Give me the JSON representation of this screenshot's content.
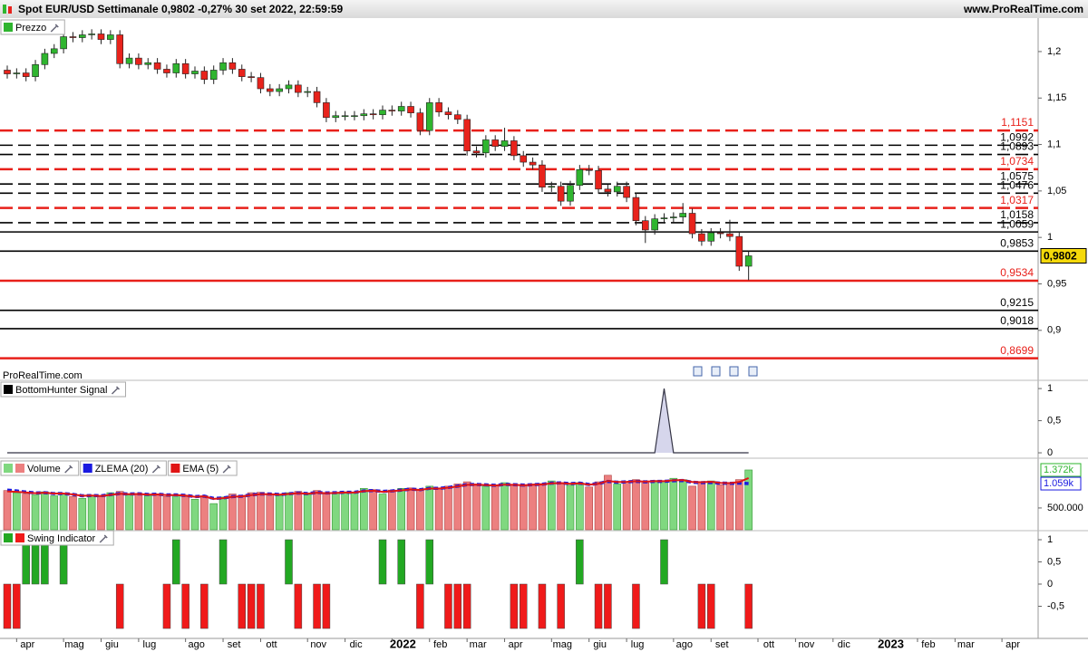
{
  "header": {
    "title": "Spot EUR/USD Settimanale 0,9802 -0,27% 30 set 2022, 22:59:59",
    "site": "www.ProRealTime.com"
  },
  "chart_data": [
    {
      "type": "candlestick",
      "title": "Prezzo",
      "watermark": "ProRealTime.com",
      "up_color": "#2fb52f",
      "down_color": "#e8231c",
      "categories": [
        null,
        "apr",
        null,
        null,
        null,
        null,
        "mag",
        null,
        null,
        null,
        "giu",
        null,
        null,
        null,
        "lug",
        null,
        null,
        null,
        null,
        "ago",
        null,
        null,
        null,
        "set",
        null,
        null,
        null,
        "ott",
        null,
        null,
        null,
        null,
        "nov",
        null,
        null,
        null,
        "dic",
        null,
        null,
        null,
        null,
        "2022",
        null,
        null,
        null,
        "feb",
        null,
        null,
        null,
        "mar",
        null,
        null,
        null,
        "apr",
        null,
        null,
        null,
        null,
        "mag",
        null,
        null,
        null,
        "giu",
        null,
        null,
        null,
        "lug",
        null,
        null,
        null,
        null,
        "ago",
        null,
        null,
        null,
        "set",
        null,
        null,
        null,
        null,
        "ott",
        null,
        null,
        null,
        "nov",
        null,
        null,
        null,
        "dic",
        null,
        null,
        null,
        null,
        "2023",
        null,
        null,
        null,
        "feb",
        null,
        null,
        null,
        "mar",
        null,
        null,
        null,
        null,
        "apr",
        null,
        null
      ],
      "open": [
        1.18,
        1.176,
        1.177,
        1.173,
        1.186,
        1.198,
        1.203,
        1.216,
        1.215,
        1.218,
        1.219,
        1.213,
        1.218,
        1.187,
        1.193,
        1.186,
        1.188,
        1.181,
        1.177,
        1.187,
        1.176,
        1.179,
        1.17,
        1.18,
        1.188,
        1.181,
        1.173,
        1.172,
        1.16,
        1.157,
        1.16,
        1.164,
        1.156,
        1.157,
        1.145,
        1.129,
        1.131,
        1.131,
        1.131,
        1.133,
        1.132,
        1.137,
        1.136,
        1.141,
        1.134,
        1.115,
        1.145,
        1.135,
        1.132,
        1.127,
        1.093,
        1.091,
        1.105,
        1.098,
        1.104,
        1.088,
        1.081,
        1.078,
        1.054,
        1.055,
        1.039,
        1.056,
        1.073,
        1.072,
        1.052,
        1.049,
        1.055,
        1.043,
        1.018,
        1.008,
        1.02,
        1.021,
        1.022,
        1.026,
        1.004,
        0.996,
        1.005,
        1.004,
        1.001,
        0.969,
        null,
        null,
        null,
        null,
        null,
        null,
        null,
        null,
        null,
        null,
        null,
        null,
        null,
        null,
        null,
        null,
        null,
        null,
        null,
        null,
        null,
        null,
        null,
        null,
        null,
        null,
        null,
        null,
        null
      ],
      "high": [
        1.185,
        1.182,
        1.182,
        1.191,
        1.203,
        1.208,
        1.221,
        1.221,
        1.223,
        1.224,
        1.224,
        1.223,
        1.223,
        1.198,
        1.198,
        1.193,
        1.193,
        1.186,
        1.192,
        1.192,
        1.184,
        1.184,
        1.185,
        1.193,
        1.193,
        1.186,
        1.178,
        1.177,
        1.165,
        1.165,
        1.169,
        1.169,
        1.162,
        1.162,
        1.15,
        1.136,
        1.136,
        1.136,
        1.138,
        1.138,
        1.142,
        1.142,
        1.146,
        1.146,
        1.139,
        1.15,
        1.15,
        1.14,
        1.137,
        1.132,
        1.098,
        1.11,
        1.11,
        1.118,
        1.109,
        1.093,
        1.086,
        1.083,
        1.06,
        1.06,
        1.061,
        1.078,
        1.078,
        1.077,
        1.057,
        1.06,
        1.06,
        1.048,
        1.023,
        1.025,
        1.026,
        1.027,
        1.037,
        1.031,
        1.009,
        1.01,
        1.01,
        1.019,
        1.006,
        0.985,
        null,
        null,
        null,
        null,
        null,
        null,
        null,
        null,
        null,
        null,
        null,
        null,
        null,
        null,
        null,
        null,
        null,
        null,
        null,
        null,
        null,
        null,
        null,
        null,
        null,
        null,
        null,
        null,
        null
      ],
      "low": [
        1.171,
        1.171,
        1.168,
        1.168,
        1.181,
        1.193,
        1.198,
        1.21,
        1.21,
        1.213,
        1.208,
        1.208,
        1.182,
        1.182,
        1.181,
        1.181,
        1.176,
        1.172,
        1.172,
        1.171,
        1.171,
        1.165,
        1.165,
        1.175,
        1.176,
        1.168,
        1.167,
        1.155,
        1.152,
        1.152,
        1.155,
        1.151,
        1.151,
        1.14,
        1.124,
        1.124,
        1.126,
        1.126,
        1.126,
        1.127,
        1.127,
        1.131,
        1.131,
        1.129,
        1.11,
        1.11,
        1.13,
        1.127,
        1.122,
        1.088,
        1.086,
        1.086,
        1.093,
        1.093,
        1.083,
        1.076,
        1.073,
        1.049,
        1.049,
        1.034,
        1.034,
        1.051,
        1.067,
        1.047,
        1.044,
        1.044,
        1.038,
        1.013,
        0.994,
        1.003,
        1.015,
        1.016,
        1.017,
        0.999,
        0.991,
        0.991,
        0.999,
        0.996,
        0.964,
        0.954,
        null,
        null,
        null,
        null,
        null,
        null,
        null,
        null,
        null,
        null,
        null,
        null,
        null,
        null,
        null,
        null,
        null,
        null,
        null,
        null,
        null,
        null,
        null,
        null,
        null,
        null,
        null,
        null,
        null
      ],
      "close": [
        1.176,
        1.177,
        1.173,
        1.186,
        1.198,
        1.203,
        1.216,
        1.215,
        1.218,
        1.219,
        1.213,
        1.218,
        1.187,
        1.193,
        1.186,
        1.188,
        1.181,
        1.177,
        1.187,
        1.176,
        1.179,
        1.17,
        1.18,
        1.188,
        1.181,
        1.173,
        1.172,
        1.16,
        1.157,
        1.16,
        1.164,
        1.156,
        1.157,
        1.145,
        1.129,
        1.131,
        1.131,
        1.131,
        1.133,
        1.132,
        1.137,
        1.136,
        1.141,
        1.134,
        1.115,
        1.145,
        1.135,
        1.132,
        1.127,
        1.093,
        1.091,
        1.105,
        1.098,
        1.104,
        1.088,
        1.081,
        1.078,
        1.054,
        1.055,
        1.039,
        1.056,
        1.073,
        1.072,
        1.052,
        1.049,
        1.055,
        1.043,
        1.018,
        1.008,
        1.02,
        1.021,
        1.022,
        1.026,
        1.004,
        0.996,
        1.005,
        1.004,
        1.001,
        0.969,
        0.9802,
        null,
        null,
        null,
        null,
        null,
        null,
        null,
        null,
        null,
        null,
        null,
        null,
        null,
        null,
        null,
        null,
        null,
        null,
        null,
        null,
        null,
        null,
        null,
        null,
        null,
        null,
        null,
        null,
        null
      ],
      "ylim": [
        0.854,
        1.236
      ],
      "yticks": [
        {
          "value": 1.2,
          "label": "1,2"
        },
        {
          "value": 1.15,
          "label": "1,15"
        },
        {
          "value": 1.1,
          "label": "1,1"
        },
        {
          "value": 1.05,
          "label": "1,05"
        },
        1,
        {
          "value": 0.95,
          "label": "0,95"
        },
        {
          "value": 0.9,
          "label": "0,9"
        }
      ],
      "last": {
        "value": 0.9802,
        "label": "0,9802",
        "color": "#f5d90a"
      },
      "levels": [
        {
          "value": 1.1151,
          "label": "1,1151",
          "color": "#e8201a",
          "style": "dashed"
        },
        {
          "value": 1.0992,
          "label": "1,0992",
          "color": "#000000",
          "style": "dashed"
        },
        {
          "value": 1.0893,
          "label": "1,0893",
          "color": "#000000",
          "style": "dashed"
        },
        {
          "value": 1.0734,
          "label": "1,0734",
          "color": "#e8201a",
          "style": "dashed"
        },
        {
          "value": 1.0575,
          "label": "1,0575",
          "color": "#000000",
          "style": "dashed"
        },
        {
          "value": 1.0476,
          "label": "1,0476",
          "color": "#000000",
          "style": "dashed"
        },
        {
          "value": 1.0317,
          "label": "1,0317",
          "color": "#e8201a",
          "style": "dashed"
        },
        {
          "value": 1.0158,
          "label": "1,0158",
          "color": "#000000",
          "style": "dashed"
        },
        {
          "value": 1.0059,
          "label": "1,0059",
          "color": "#000000",
          "style": "solid"
        },
        {
          "value": 0.9853,
          "label": "0,9853",
          "color": "#000000",
          "style": "solid"
        },
        {
          "value": 0.9534,
          "label": "0,9534",
          "color": "#e8201a",
          "style": "solid"
        },
        {
          "value": 0.9215,
          "label": "0,9215",
          "color": "#000000",
          "style": "solid"
        },
        {
          "value": 0.9018,
          "label": "0,9018",
          "color": "#000000",
          "style": "solid"
        },
        {
          "value": 0.8699,
          "label": "0,8699",
          "color": "#e8201a",
          "style": "solid"
        }
      ]
    },
    {
      "type": "area",
      "title": "BottomHunter Signal",
      "color": "#d6d6ec",
      "line_color": "#333344",
      "values": [
        0,
        0,
        0,
        0,
        0,
        0,
        0,
        0,
        0,
        0,
        0,
        0,
        0,
        0,
        0,
        0,
        0,
        0,
        0,
        0,
        0,
        0,
        0,
        0,
        0,
        0,
        0,
        0,
        0,
        0,
        0,
        0,
        0,
        0,
        0,
        0,
        0,
        0,
        0,
        0,
        0,
        0,
        0,
        0,
        0,
        0,
        0,
        0,
        0,
        0,
        0,
        0,
        0,
        0,
        0,
        0,
        0,
        0,
        0,
        0,
        0,
        0,
        0,
        0,
        0,
        0,
        0,
        0,
        0,
        0,
        1,
        0,
        0,
        0,
        0,
        0,
        0,
        0,
        0,
        0
      ],
      "ylim": [
        -0.07,
        1.1
      ],
      "yticks": [
        1,
        {
          "value": 0.5,
          "label": "0,5"
        },
        0
      ]
    },
    {
      "type": "volume",
      "up_color": "#80d880",
      "down_color": "#ec8080",
      "series": [
        {
          "name": "Volume",
          "values": [
            900000,
            850000,
            820000,
            800000,
            870000,
            780000,
            830000,
            760000,
            720000,
            790000,
            760000,
            850000,
            880000,
            800000,
            830000,
            780000,
            820000,
            760000,
            790000,
            760000,
            700000,
            780000,
            600000,
            750000,
            820000,
            790000,
            850000,
            860000,
            820000,
            780000,
            850000,
            880000,
            800000,
            900000,
            820000,
            860000,
            870000,
            850000,
            950000,
            920000,
            820000,
            910000,
            950000,
            960000,
            900000,
            1000000,
            950000,
            1000000,
            1050000,
            1100000,
            1050000,
            1000000,
            1000000,
            1080000,
            1020000,
            1000000,
            1050000,
            1060000,
            1120000,
            1080000,
            1020000,
            1080000,
            980000,
            1100000,
            1250000,
            1050000,
            1100000,
            1150000,
            1080000,
            1130000,
            1120000,
            1180000,
            1150000,
            1000000,
            1080000,
            1120000,
            1030000,
            1060000,
            1150000,
            1372000
          ]
        },
        {
          "name": "ZLEMA (20)",
          "color": "#1a1ae0",
          "values": [
            910000,
            890000,
            865000,
            845000,
            850000,
            830000,
            830000,
            810000,
            780000,
            785000,
            780000,
            805000,
            830000,
            820000,
            825000,
            810000,
            815000,
            800000,
            800000,
            790000,
            760000,
            770000,
            720000,
            730000,
            760000,
            770000,
            800000,
            820000,
            820000,
            810000,
            825000,
            845000,
            830000,
            855000,
            845000,
            850000,
            860000,
            860000,
            890000,
            900000,
            880000,
            890000,
            910000,
            930000,
            920000,
            950000,
            950000,
            970000,
            1000000,
            1035000,
            1040000,
            1030000,
            1020000,
            1040000,
            1035000,
            1025000,
            1035000,
            1045000,
            1070000,
            1075000,
            1060000,
            1070000,
            1040000,
            1060000,
            1110000,
            1090000,
            1100000,
            1110000,
            1100000,
            1110000,
            1110000,
            1125000,
            1130000,
            1090000,
            1080000,
            1085000,
            1070000,
            1065000,
            1070000,
            1059000
          ]
        },
        {
          "name": "EMA (5)",
          "color": "#e01515",
          "values": [
            880000,
            870000,
            855000,
            840000,
            850000,
            830000,
            830000,
            810000,
            780000,
            785000,
            775000,
            800000,
            825000,
            815000,
            820000,
            805000,
            810000,
            795000,
            795000,
            785000,
            755000,
            765000,
            710000,
            725000,
            755000,
            765000,
            795000,
            815000,
            815000,
            805000,
            820000,
            840000,
            825000,
            850000,
            840000,
            845000,
            855000,
            855000,
            885000,
            895000,
            870000,
            885000,
            905000,
            925000,
            915000,
            945000,
            945000,
            965000,
            995000,
            1030000,
            1035000,
            1025000,
            1015000,
            1035000,
            1030000,
            1020000,
            1030000,
            1040000,
            1065000,
            1070000,
            1055000,
            1065000,
            1035000,
            1055000,
            1120000,
            1095000,
            1100000,
            1115000,
            1105000,
            1115000,
            1115000,
            1135000,
            1140000,
            1095000,
            1090000,
            1100000,
            1075000,
            1070000,
            1095000,
            1185000
          ]
        }
      ],
      "ylim": [
        0,
        1600000
      ],
      "yticks": [
        {
          "value": 500000,
          "label": "500.000"
        }
      ],
      "last_labels": [
        {
          "value": 1372000,
          "label": "1.372k",
          "color": "#2fb52f"
        },
        {
          "value": 1059000,
          "label": "1.059k",
          "color": "#1a1ae0"
        }
      ]
    },
    {
      "type": "bar",
      "title": "Swing Indicator",
      "up_color": "#22a822",
      "down_color": "#f01a1a",
      "values": [
        -1,
        -1,
        1,
        1,
        1,
        0,
        1,
        0,
        0,
        0,
        0,
        0,
        -1,
        0,
        0,
        0,
        0,
        -1,
        1,
        -1,
        0,
        -1,
        0,
        1,
        0,
        -1,
        -1,
        -1,
        0,
        0,
        1,
        -1,
        0,
        -1,
        -1,
        0,
        0,
        0,
        0,
        0,
        1,
        0,
        1,
        0,
        -1,
        1,
        0,
        -1,
        -1,
        -1,
        0,
        0,
        0,
        0,
        -1,
        -1,
        0,
        -1,
        0,
        -1,
        0,
        1,
        0,
        -1,
        -1,
        0,
        0,
        -1,
        0,
        0,
        1,
        0,
        0,
        0,
        -1,
        -1,
        0,
        0,
        0,
        -1
      ],
      "ylim": [
        -1.224,
        1.163
      ],
      "yticks": [
        1,
        {
          "value": 0.5,
          "label": "0,5"
        },
        0,
        {
          "value": -0.5,
          "label": "-0,5"
        }
      ]
    }
  ]
}
